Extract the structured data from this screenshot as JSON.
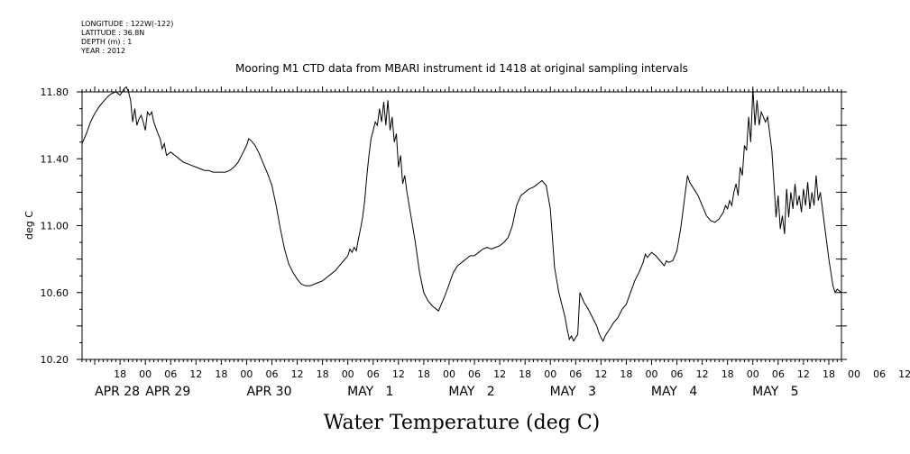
{
  "meta": {
    "longitude": "LONGITUDE : 122W(-122)",
    "latitude": "LATITUDE : 36.8N",
    "depth": "DEPTH (m) : 1",
    "year": "YEAR : 2012"
  },
  "chart_data": {
    "type": "line",
    "title": "Mooring M1 CTD data from MBARI instrument id 1418 at original sampling intervals",
    "ylabel": "deg C",
    "xlabel": "Water Temperature (deg C)",
    "ylim": [
      10.2,
      11.8
    ],
    "yticks": [
      "10.20",
      "10.60",
      "11.00",
      "11.40",
      "11.80"
    ],
    "x_units": "hours from 2012-04-28 00:00",
    "xlim": [
      9,
      189
    ],
    "hour_ticks": [
      "18",
      "00",
      "06",
      "12",
      "18",
      "00",
      "06",
      "12",
      "18",
      "00",
      "06",
      "12",
      "18",
      "00",
      "06",
      "12",
      "18",
      "00",
      "06",
      "12",
      "18",
      "00",
      "06",
      "12",
      "18",
      "00",
      "06",
      "12",
      "18",
      "00",
      "06",
      "12"
    ],
    "date_labels": [
      {
        "label": "APR 28",
        "hour": 18
      },
      {
        "label": "APR 29",
        "hour": 30
      },
      {
        "label": "APR 30",
        "hour": 54
      },
      {
        "label": "MAY   1",
        "hour": 78
      },
      {
        "label": "MAY   2",
        "hour": 102
      },
      {
        "label": "MAY   3",
        "hour": 126
      },
      {
        "label": "MAY   4",
        "hour": 150
      },
      {
        "label": "MAY   5",
        "hour": 174
      }
    ],
    "series": [
      {
        "points": [
          [
            9,
            11.49
          ],
          [
            10,
            11.55
          ],
          [
            11,
            11.62
          ],
          [
            12,
            11.67
          ],
          [
            13,
            11.71
          ],
          [
            14,
            11.74
          ],
          [
            15,
            11.77
          ],
          [
            16,
            11.79
          ],
          [
            17,
            11.8
          ],
          [
            18,
            11.78
          ],
          [
            19,
            11.82
          ],
          [
            19.5,
            11.83
          ],
          [
            20,
            11.8
          ],
          [
            20.5,
            11.75
          ],
          [
            21,
            11.62
          ],
          [
            21.5,
            11.7
          ],
          [
            22,
            11.6
          ],
          [
            22.5,
            11.64
          ],
          [
            23,
            11.66
          ],
          [
            23.5,
            11.62
          ],
          [
            24,
            11.57
          ],
          [
            24.5,
            11.68
          ],
          [
            25,
            11.66
          ],
          [
            25.5,
            11.68
          ],
          [
            26,
            11.62
          ],
          [
            27,
            11.55
          ],
          [
            27.5,
            11.52
          ],
          [
            28,
            11.46
          ],
          [
            28.5,
            11.49
          ],
          [
            29,
            11.42
          ],
          [
            30,
            11.44
          ],
          [
            31,
            11.42
          ],
          [
            32,
            11.4
          ],
          [
            33,
            11.38
          ],
          [
            34,
            11.37
          ],
          [
            35,
            11.36
          ],
          [
            36,
            11.35
          ],
          [
            37,
            11.34
          ],
          [
            38,
            11.33
          ],
          [
            39,
            11.33
          ],
          [
            40,
            11.32
          ],
          [
            41,
            11.32
          ],
          [
            42,
            11.32
          ],
          [
            43,
            11.32
          ],
          [
            44,
            11.33
          ],
          [
            45,
            11.35
          ],
          [
            46,
            11.38
          ],
          [
            47,
            11.43
          ],
          [
            48,
            11.48
          ],
          [
            48.5,
            11.52
          ],
          [
            49,
            11.51
          ],
          [
            50,
            11.48
          ],
          [
            51,
            11.43
          ],
          [
            52,
            11.37
          ],
          [
            53,
            11.31
          ],
          [
            54,
            11.24
          ],
          [
            55,
            11.12
          ],
          [
            56,
            10.98
          ],
          [
            57,
            10.86
          ],
          [
            58,
            10.77
          ],
          [
            59,
            10.72
          ],
          [
            60,
            10.68
          ],
          [
            61,
            10.65
          ],
          [
            62,
            10.64
          ],
          [
            63,
            10.64
          ],
          [
            64,
            10.65
          ],
          [
            65,
            10.66
          ],
          [
            66,
            10.67
          ],
          [
            67,
            10.69
          ],
          [
            68,
            10.71
          ],
          [
            69,
            10.73
          ],
          [
            70,
            10.76
          ],
          [
            71,
            10.79
          ],
          [
            72,
            10.82
          ],
          [
            72.5,
            10.86
          ],
          [
            73,
            10.84
          ],
          [
            73.5,
            10.87
          ],
          [
            74,
            10.85
          ],
          [
            74.5,
            10.92
          ],
          [
            75,
            10.98
          ],
          [
            75.5,
            11.05
          ],
          [
            76,
            11.15
          ],
          [
            76.5,
            11.3
          ],
          [
            77,
            11.42
          ],
          [
            77.5,
            11.52
          ],
          [
            78,
            11.57
          ],
          [
            78.5,
            11.62
          ],
          [
            79,
            11.6
          ],
          [
            79.5,
            11.7
          ],
          [
            80,
            11.62
          ],
          [
            80.5,
            11.74
          ],
          [
            81,
            11.6
          ],
          [
            81.5,
            11.75
          ],
          [
            82,
            11.57
          ],
          [
            82.5,
            11.65
          ],
          [
            83,
            11.5
          ],
          [
            83.5,
            11.55
          ],
          [
            84,
            11.35
          ],
          [
            84.5,
            11.42
          ],
          [
            85,
            11.25
          ],
          [
            85.5,
            11.3
          ],
          [
            86,
            11.2
          ],
          [
            87,
            11.05
          ],
          [
            88,
            10.9
          ],
          [
            89,
            10.72
          ],
          [
            90,
            10.6
          ],
          [
            91,
            10.55
          ],
          [
            92,
            10.52
          ],
          [
            93,
            10.5
          ],
          [
            93.5,
            10.49
          ],
          [
            94,
            10.52
          ],
          [
            95,
            10.58
          ],
          [
            96,
            10.65
          ],
          [
            97,
            10.72
          ],
          [
            98,
            10.76
          ],
          [
            99,
            10.78
          ],
          [
            100,
            10.8
          ],
          [
            101,
            10.82
          ],
          [
            102,
            10.82
          ],
          [
            103,
            10.84
          ],
          [
            104,
            10.86
          ],
          [
            105,
            10.87
          ],
          [
            106,
            10.86
          ],
          [
            107,
            10.87
          ],
          [
            108,
            10.88
          ],
          [
            109,
            10.9
          ],
          [
            110,
            10.93
          ],
          [
            111,
            11.0
          ],
          [
            112,
            11.12
          ],
          [
            113,
            11.18
          ],
          [
            114,
            11.2
          ],
          [
            115,
            11.22
          ],
          [
            116,
            11.23
          ],
          [
            117,
            11.25
          ],
          [
            118,
            11.27
          ],
          [
            119,
            11.24
          ],
          [
            120,
            11.1
          ],
          [
            121,
            10.75
          ],
          [
            122,
            10.6
          ],
          [
            123,
            10.5
          ],
          [
            123.5,
            10.45
          ],
          [
            124,
            10.38
          ],
          [
            124.5,
            10.32
          ],
          [
            125,
            10.34
          ],
          [
            125.5,
            10.31
          ],
          [
            126,
            10.33
          ],
          [
            126.5,
            10.35
          ],
          [
            127,
            10.6
          ],
          [
            127.5,
            10.57
          ],
          [
            128,
            10.54
          ],
          [
            129,
            10.5
          ],
          [
            130,
            10.45
          ],
          [
            131,
            10.4
          ],
          [
            131.5,
            10.36
          ],
          [
            132,
            10.33
          ],
          [
            132.5,
            10.31
          ],
          [
            133,
            10.34
          ],
          [
            134,
            10.38
          ],
          [
            135,
            10.42
          ],
          [
            136,
            10.45
          ],
          [
            137,
            10.5
          ],
          [
            138,
            10.53
          ],
          [
            139,
            10.6
          ],
          [
            140,
            10.67
          ],
          [
            141,
            10.72
          ],
          [
            142,
            10.78
          ],
          [
            142.5,
            10.83
          ],
          [
            143,
            10.81
          ],
          [
            144,
            10.84
          ],
          [
            145,
            10.82
          ],
          [
            146,
            10.79
          ],
          [
            147,
            10.76
          ],
          [
            147.5,
            10.79
          ],
          [
            148,
            10.78
          ],
          [
            149,
            10.79
          ],
          [
            150,
            10.85
          ],
          [
            151,
            11.0
          ],
          [
            152,
            11.2
          ],
          [
            152.5,
            11.3
          ],
          [
            153,
            11.26
          ],
          [
            154,
            11.22
          ],
          [
            155,
            11.18
          ],
          [
            156,
            11.12
          ],
          [
            157,
            11.06
          ],
          [
            158,
            11.03
          ],
          [
            159,
            11.02
          ],
          [
            160,
            11.04
          ],
          [
            161,
            11.08
          ],
          [
            161.5,
            11.12
          ],
          [
            162,
            11.1
          ],
          [
            162.5,
            11.15
          ],
          [
            163,
            11.12
          ],
          [
            163.5,
            11.2
          ],
          [
            164,
            11.25
          ],
          [
            164.5,
            11.18
          ],
          [
            165,
            11.35
          ],
          [
            165.5,
            11.3
          ],
          [
            166,
            11.48
          ],
          [
            166.5,
            11.45
          ],
          [
            167,
            11.65
          ],
          [
            167.5,
            11.5
          ],
          [
            168,
            11.82
          ],
          [
            168.5,
            11.6
          ],
          [
            169,
            11.75
          ],
          [
            169.5,
            11.6
          ],
          [
            170,
            11.68
          ],
          [
            171,
            11.62
          ],
          [
            171.5,
            11.65
          ],
          [
            172,
            11.55
          ],
          [
            172.5,
            11.45
          ],
          [
            173,
            11.25
          ],
          [
            173.5,
            11.05
          ],
          [
            174,
            11.18
          ],
          [
            174.5,
            10.98
          ],
          [
            175,
            11.06
          ],
          [
            175.5,
            10.95
          ],
          [
            176,
            11.22
          ],
          [
            176.5,
            11.05
          ],
          [
            177,
            11.2
          ],
          [
            177.5,
            11.1
          ],
          [
            178,
            11.25
          ],
          [
            178.5,
            11.12
          ],
          [
            179,
            11.18
          ],
          [
            179.5,
            11.08
          ],
          [
            180,
            11.22
          ],
          [
            180.5,
            11.12
          ],
          [
            181,
            11.26
          ],
          [
            181.5,
            11.1
          ],
          [
            182,
            11.2
          ],
          [
            182.5,
            11.12
          ],
          [
            183,
            11.3
          ],
          [
            183.5,
            11.15
          ],
          [
            184,
            11.2
          ],
          [
            185,
            11.0
          ],
          [
            186,
            10.8
          ],
          [
            187,
            10.64
          ],
          [
            187.5,
            10.6
          ],
          [
            188,
            10.62
          ],
          [
            189,
            10.6
          ]
        ]
      }
    ]
  }
}
